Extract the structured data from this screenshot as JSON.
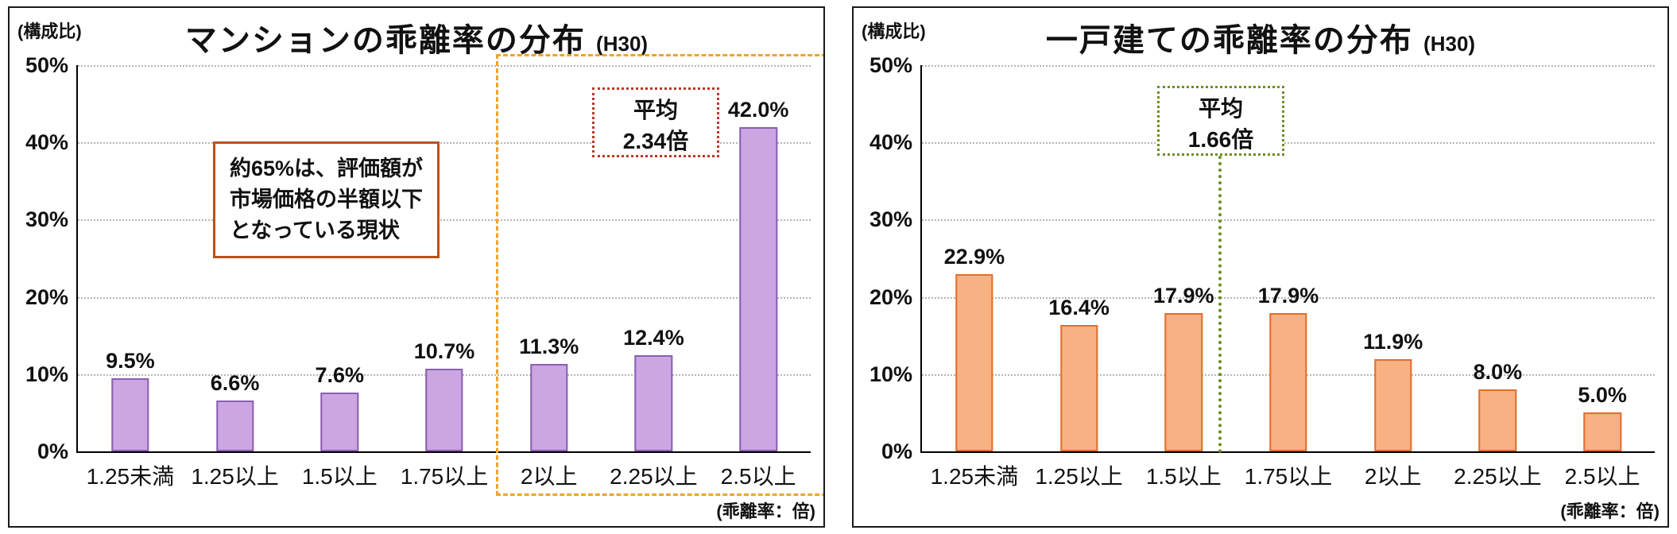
{
  "chart_data": [
    {
      "type": "bar",
      "title": "マンションの乖離率の分布 (H30)",
      "title_main": "マンションの乖離率の分布",
      "title_suffix": "(H30)",
      "y_unit_label": "(構成比)",
      "x_unit_label": "(乖離率：倍)",
      "categories": [
        "1.25未満",
        "1.25以上",
        "1.5以上",
        "1.75以上",
        "2以上",
        "2.25以上",
        "2.5以上"
      ],
      "values": [
        9.5,
        6.6,
        7.6,
        10.7,
        11.3,
        12.4,
        42.0
      ],
      "data_labels": [
        "9.5%",
        "6.6%",
        "7.6%",
        "10.7%",
        "11.3%",
        "12.4%",
        "42.0%"
      ],
      "ylim": [
        0,
        50
      ],
      "ytick_step": 10,
      "ytick_labels": [
        "0%",
        "10%",
        "20%",
        "30%",
        "40%",
        "50%"
      ],
      "grid": "horizontal dotted",
      "legend": "none",
      "bar_fill": "#cba6e3",
      "bar_border": "#8a5fb0",
      "annotations": {
        "note_label": "約65%は、評価額が\n市場価格の半額以下\nとなっている現状",
        "average_label": "平均\n2.34倍",
        "average_value": "2.34倍",
        "highlight": "2以上〜2.5以上の範囲を橙色の破線枠で強調"
      }
    },
    {
      "type": "bar",
      "title": "一戸建ての乖離率の分布 (H30)",
      "title_main": "一戸建ての乖離率の分布",
      "title_suffix": "(H30)",
      "y_unit_label": "(構成比)",
      "x_unit_label": "(乖離率：倍)",
      "categories": [
        "1.25未満",
        "1.25以上",
        "1.5以上",
        "1.75以上",
        "2以上",
        "2.25以上",
        "2.5以上"
      ],
      "values": [
        22.9,
        16.4,
        17.9,
        17.9,
        11.9,
        8.0,
        5.0
      ],
      "data_labels": [
        "22.9%",
        "16.4%",
        "17.9%",
        "17.9%",
        "11.9%",
        "8.0%",
        "5.0%"
      ],
      "ylim": [
        0,
        50
      ],
      "ytick_step": 10,
      "ytick_labels": [
        "0%",
        "10%",
        "20%",
        "30%",
        "40%",
        "50%"
      ],
      "grid": "horizontal dotted",
      "legend": "none",
      "bar_fill": "#f8b183",
      "bar_border": "#e06f2e",
      "annotations": {
        "average_label": "平均\n1.66倍",
        "average_value": "1.66倍",
        "highlight": "平均1.66倍の位置に緑の点線の縦線"
      }
    }
  ]
}
